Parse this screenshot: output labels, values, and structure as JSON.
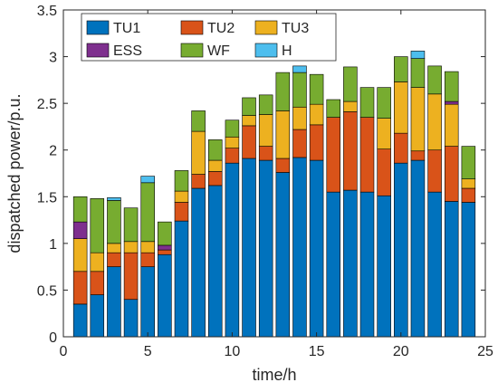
{
  "chart_data": {
    "type": "bar",
    "stacked": true,
    "title": "",
    "xlabel": "time/h",
    "ylabel": "dispatched power/p.u.",
    "xlim": [
      0,
      25
    ],
    "ylim": [
      0,
      3.5
    ],
    "xticks": [
      0,
      5,
      10,
      15,
      20,
      25
    ],
    "yticks": [
      0,
      0.5,
      1,
      1.5,
      2,
      2.5,
      3,
      3.5
    ],
    "ytick_labels": [
      "0",
      "0.5",
      "1",
      "1.5",
      "2",
      "2.5",
      "3",
      "3.5"
    ],
    "grid": false,
    "legend_position": "top-left",
    "categories": [
      1,
      2,
      3,
      4,
      5,
      6,
      7,
      8,
      9,
      10,
      11,
      12,
      13,
      14,
      15,
      16,
      17,
      18,
      19,
      20,
      21,
      22,
      23,
      24
    ],
    "series": [
      {
        "name": "TU1",
        "color": "#0072BD",
        "values": [
          0.35,
          0.45,
          0.75,
          0.4,
          0.75,
          0.88,
          1.24,
          1.59,
          1.62,
          1.86,
          1.91,
          1.89,
          1.76,
          1.92,
          1.89,
          1.55,
          1.57,
          1.55,
          1.51,
          1.86,
          1.89,
          1.55,
          1.45,
          1.44
        ]
      },
      {
        "name": "TU2",
        "color": "#D95319",
        "values": [
          0.35,
          0.25,
          0.15,
          0.5,
          0.15,
          0.05,
          0.2,
          0.15,
          0.15,
          0.16,
          0.35,
          0.15,
          0.15,
          0.3,
          0.38,
          0.8,
          0.84,
          0.8,
          0.5,
          0.32,
          0.1,
          0.45,
          0.59,
          0.15
        ]
      },
      {
        "name": "TU3",
        "color": "#EDB120",
        "values": [
          0.35,
          0.2,
          0.1,
          0.12,
          0.12,
          0.0,
          0.12,
          0.46,
          0.12,
          0.12,
          0.11,
          0.34,
          0.51,
          0.24,
          0.22,
          0.0,
          0.11,
          0.0,
          0.33,
          0.55,
          0.68,
          0.6,
          0.45,
          0.1
        ]
      },
      {
        "name": "ESS",
        "color": "#7E2F8E",
        "values": [
          0.18,
          0.0,
          0.0,
          0.0,
          0.0,
          0.05,
          0.0,
          0.0,
          0.0,
          0.0,
          0.0,
          0.0,
          0.0,
          0.0,
          0.0,
          0.0,
          0.0,
          0.0,
          0.0,
          0.0,
          0.0,
          0.0,
          0.03,
          0.0
        ]
      },
      {
        "name": "WF",
        "color": "#77AC30",
        "values": [
          0.27,
          0.58,
          0.46,
          0.36,
          0.63,
          0.25,
          0.22,
          0.22,
          0.22,
          0.18,
          0.19,
          0.21,
          0.41,
          0.37,
          0.32,
          0.19,
          0.37,
          0.32,
          0.33,
          0.27,
          0.31,
          0.3,
          0.32,
          0.35
        ]
      },
      {
        "name": "H",
        "color": "#4DBEEE",
        "values": [
          0.0,
          0.0,
          0.03,
          0.0,
          0.07,
          0.0,
          0.0,
          0.0,
          0.0,
          0.0,
          0.0,
          0.0,
          0.0,
          0.07,
          0.0,
          0.0,
          0.0,
          0.0,
          0.0,
          0.0,
          0.08,
          0.0,
          0.0,
          0.0
        ]
      }
    ]
  }
}
